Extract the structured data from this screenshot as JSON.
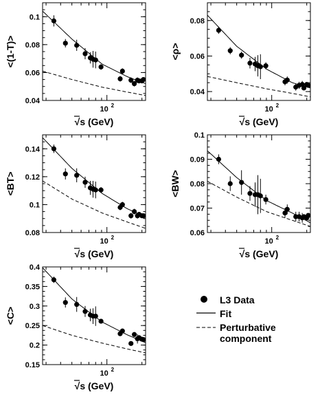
{
  "chart_data": [
    {
      "type": "scatter",
      "ylabel": "<(1-T)>",
      "xlabel": "√s  (GeV)",
      "xscale": "log",
      "xlim": [
        28,
        215
      ],
      "ylim": [
        0.04,
        0.11
      ],
      "yticks": [
        "0.04",
        "0.06",
        "0.08",
        "0.1"
      ],
      "xtick_major_label": "10",
      "xtick_major_exp": "2",
      "series": [
        {
          "name": "L3 Data",
          "x": [
            35,
            44,
            55,
            65,
            72,
            76,
            80,
            89,
            130,
            136,
            161,
            172,
            183,
            189,
            200,
            206
          ],
          "y": [
            0.097,
            0.081,
            0.0795,
            0.0735,
            0.0705,
            0.0695,
            0.069,
            0.064,
            0.0555,
            0.061,
            0.0545,
            0.052,
            0.0545,
            0.054,
            0.054,
            0.055
          ],
          "err": [
            0.004,
            0.003,
            0.004,
            0.004,
            0.004,
            0.006,
            0.006,
            0.002,
            0.002,
            0.002,
            0.002,
            0.002,
            0.002,
            0.001,
            0.001,
            0.001
          ]
        },
        {
          "name": "Fit",
          "x": [
            28,
            50,
            91,
            150,
            215
          ],
          "y": [
            0.104,
            0.084,
            0.066,
            0.057,
            0.052
          ]
        },
        {
          "name": "Perturbative component",
          "x": [
            28,
            50,
            91,
            150,
            215
          ],
          "y": [
            0.061,
            0.055,
            0.0495,
            0.046,
            0.0435
          ]
        }
      ]
    },
    {
      "type": "scatter",
      "ylabel": "<ρ>",
      "xlabel": "√s  (GeV)",
      "xscale": "log",
      "xlim": [
        28,
        215
      ],
      "ylim": [
        0.035,
        0.09
      ],
      "yticks": [
        "0.04",
        "0.06",
        "0.08"
      ],
      "xtick_major_label": "10",
      "xtick_major_exp": "2",
      "series": [
        {
          "name": "L3 Data",
          "x": [
            35,
            44,
            55,
            65,
            72,
            76,
            80,
            89,
            130,
            136,
            161,
            172,
            183,
            189,
            200,
            206
          ],
          "y": [
            0.0745,
            0.063,
            0.0605,
            0.056,
            0.0555,
            0.0545,
            0.054,
            0.0545,
            0.0455,
            0.0465,
            0.0425,
            0.0435,
            0.044,
            0.042,
            0.044,
            0.0435
          ],
          "err": [
            0.002,
            0.002,
            0.002,
            0.003,
            0.004,
            0.006,
            0.007,
            0.002,
            0.002,
            0.002,
            0.002,
            0.002,
            0.002,
            0.001,
            0.001,
            0.001
          ]
        },
        {
          "name": "Fit",
          "x": [
            28,
            50,
            91,
            150,
            215
          ],
          "y": [
            0.083,
            0.0655,
            0.0525,
            0.045,
            0.042
          ]
        },
        {
          "name": "Perturbative component",
          "x": [
            28,
            50,
            91,
            150,
            215
          ],
          "y": [
            0.0485,
            0.045,
            0.0415,
            0.039,
            0.037
          ]
        }
      ]
    },
    {
      "type": "scatter",
      "ylabel": "<BT>",
      "xlabel": "√s  (GeV)",
      "xscale": "log",
      "xlim": [
        28,
        215
      ],
      "ylim": [
        0.08,
        0.15
      ],
      "yticks": [
        "0.08",
        "0.1",
        "0.12",
        "0.14"
      ],
      "xtick_major_label": "10",
      "xtick_major_exp": "2",
      "series": [
        {
          "name": "L3 Data",
          "x": [
            35,
            44,
            55,
            65,
            72,
            76,
            80,
            89,
            130,
            136,
            161,
            172,
            183,
            189,
            200,
            206
          ],
          "y": [
            0.14,
            0.122,
            0.121,
            0.116,
            0.112,
            0.111,
            0.1105,
            0.1105,
            0.098,
            0.1,
            0.092,
            0.095,
            0.092,
            0.093,
            0.092,
            0.092
          ],
          "err": [
            0.003,
            0.004,
            0.005,
            0.004,
            0.005,
            0.006,
            0.006,
            0.002,
            0.002,
            0.002,
            0.002,
            0.002,
            0.002,
            0.001,
            0.001,
            0.001
          ]
        },
        {
          "name": "Fit",
          "x": [
            28,
            50,
            91,
            150,
            215
          ],
          "y": [
            0.148,
            0.126,
            0.108,
            0.097,
            0.091
          ]
        },
        {
          "name": "Perturbative component",
          "x": [
            28,
            50,
            91,
            150,
            215
          ],
          "y": [
            0.117,
            0.104,
            0.094,
            0.0875,
            0.083
          ]
        }
      ]
    },
    {
      "type": "scatter",
      "ylabel": "<BW>",
      "xlabel": "√s  (GeV)",
      "xscale": "log",
      "xlim": [
        28,
        215
      ],
      "ylim": [
        0.06,
        0.1
      ],
      "yticks": [
        "0.06",
        "0.07",
        "0.08",
        "0.09",
        "0.1"
      ],
      "xtick_major_label": "10",
      "xtick_major_exp": "2",
      "series": [
        {
          "name": "L3 Data",
          "x": [
            35,
            44,
            55,
            65,
            72,
            76,
            80,
            89,
            130,
            136,
            161,
            172,
            183,
            189,
            200,
            206
          ],
          "y": [
            0.09,
            0.08,
            0.0805,
            0.076,
            0.0755,
            0.0755,
            0.075,
            0.0735,
            0.068,
            0.0695,
            0.0665,
            0.0665,
            0.066,
            0.0665,
            0.066,
            0.067
          ],
          "err": [
            0.002,
            0.003,
            0.005,
            0.003,
            0.005,
            0.008,
            0.007,
            0.002,
            0.002,
            0.002,
            0.002,
            0.002,
            0.002,
            0.001,
            0.001,
            0.001
          ]
        },
        {
          "name": "Fit",
          "x": [
            28,
            50,
            91,
            150,
            215
          ],
          "y": [
            0.0935,
            0.0825,
            0.073,
            0.068,
            0.064
          ]
        },
        {
          "name": "Perturbative component",
          "x": [
            28,
            50,
            91,
            150,
            215
          ],
          "y": [
            0.081,
            0.0745,
            0.0685,
            0.065,
            0.0625
          ]
        }
      ]
    },
    {
      "type": "scatter",
      "ylabel": "<C>",
      "xlabel": "√s  (GeV)",
      "xscale": "log",
      "xlim": [
        28,
        215
      ],
      "ylim": [
        0.15,
        0.4
      ],
      "yticks": [
        "0.15",
        "0.2",
        "0.25",
        "0.3",
        "0.35",
        "0.4"
      ],
      "xtick_major_label": "10",
      "xtick_major_exp": "2",
      "series": [
        {
          "name": "L3 Data",
          "x": [
            35,
            44,
            55,
            65,
            72,
            76,
            80,
            89,
            130,
            136,
            161,
            172,
            183,
            189,
            200,
            206
          ],
          "y": [
            0.367,
            0.309,
            0.304,
            0.286,
            0.277,
            0.274,
            0.274,
            0.261,
            0.229,
            0.236,
            0.204,
            0.227,
            0.216,
            0.219,
            0.215,
            0.214
          ],
          "err": [
            0.008,
            0.013,
            0.019,
            0.014,
            0.016,
            0.02,
            0.025,
            0.004,
            0.005,
            0.005,
            0.005,
            0.006,
            0.012,
            0.004,
            0.004,
            0.004
          ]
        },
        {
          "name": "Fit",
          "x": [
            28,
            50,
            91,
            150,
            215
          ],
          "y": [
            0.398,
            0.318,
            0.259,
            0.226,
            0.206
          ]
        },
        {
          "name": "Perturbative component",
          "x": [
            28,
            50,
            91,
            150,
            215
          ],
          "y": [
            0.25,
            0.225,
            0.205,
            0.19,
            0.18
          ]
        }
      ]
    }
  ],
  "legend": {
    "items": [
      {
        "label": "L3 Data",
        "style": "marker"
      },
      {
        "label": "Fit",
        "style": "solid"
      },
      {
        "label": "Perturbative",
        "label2": "component",
        "style": "dashed"
      }
    ]
  }
}
